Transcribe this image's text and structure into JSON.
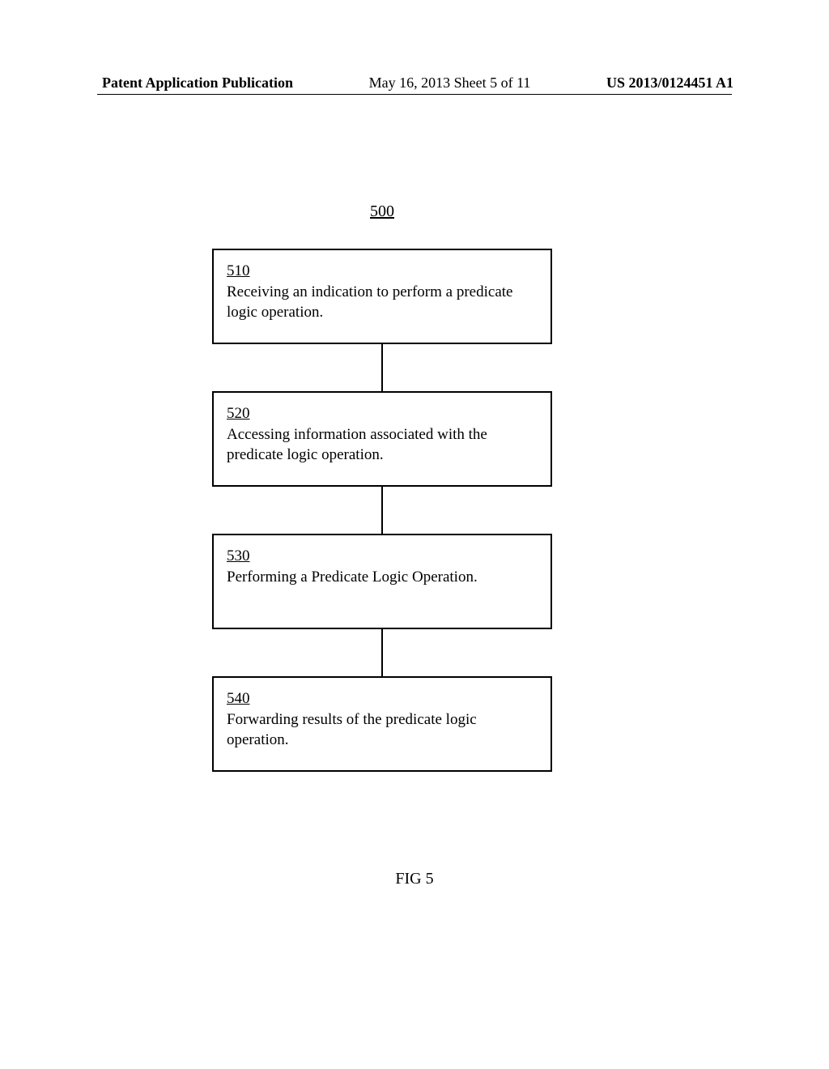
{
  "header": {
    "left": "Patent Application Publication",
    "center": "May 16, 2013  Sheet 5 of 11",
    "right": "US 2013/0124451 A1"
  },
  "diagram": {
    "figure_number": "500",
    "type": "flowchart",
    "box_border_color": "#000000",
    "background_color": "#ffffff",
    "font_family": "Times New Roman",
    "box_fontsize": 19,
    "boxes": [
      {
        "num": "510",
        "text": "Receiving an indication to perform a predicate logic operation."
      },
      {
        "num": "520",
        "text": "Accessing information associated with the predicate logic operation."
      },
      {
        "num": "530",
        "text": "Performing a Predicate Logic Operation."
      },
      {
        "num": "540",
        "text": "Forwarding results of the predicate logic operation."
      }
    ]
  },
  "caption": "FIG 5"
}
